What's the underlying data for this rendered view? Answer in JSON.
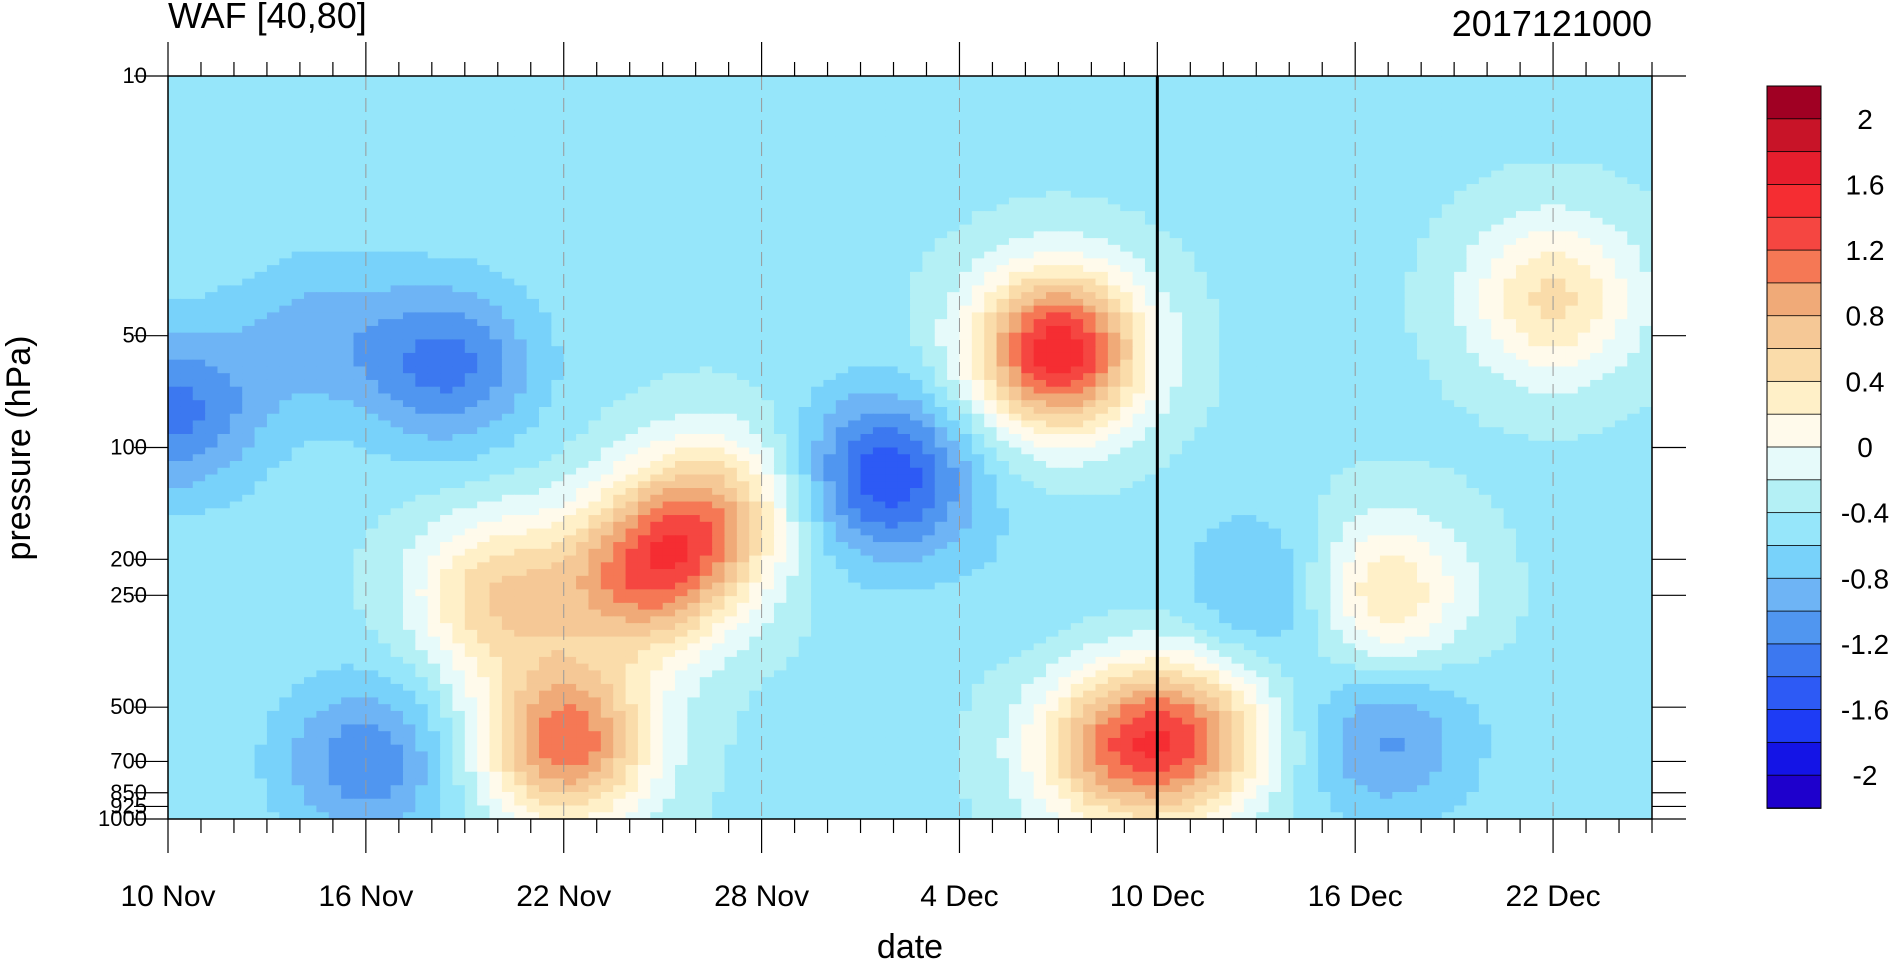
{
  "chart_data": {
    "type": "heatmap",
    "title": "WAF [40,80]",
    "timestamp": "2017121000",
    "xlabel": "date",
    "ylabel": "pressure (hPa)",
    "x_ticks": [
      {
        "day": 0,
        "label": "10 Nov"
      },
      {
        "day": 6,
        "label": "16 Nov"
      },
      {
        "day": 12,
        "label": "22 Nov"
      },
      {
        "day": 18,
        "label": "28 Nov"
      },
      {
        "day": 24,
        "label": "4 Dec"
      },
      {
        "day": 30,
        "label": "10 Dec"
      },
      {
        "day": 36,
        "label": "16 Dec"
      },
      {
        "day": 42,
        "label": "22 Dec"
      }
    ],
    "x_range_days": [
      0,
      45
    ],
    "current_day_marker": 30,
    "y_ticks": [
      10,
      50,
      100,
      200,
      250,
      500,
      700,
      850,
      925,
      1000
    ],
    "y_range_hpa": [
      10,
      1000
    ],
    "y_scale": "log",
    "colorbar": {
      "levels": [
        -2.2,
        -2,
        -1.8,
        -1.6,
        -1.4,
        -1.2,
        -1,
        -0.8,
        -0.6,
        -0.4,
        -0.2,
        0,
        0.2,
        0.4,
        0.6,
        0.8,
        1,
        1.2,
        1.4,
        1.6,
        1.8,
        2,
        2.2
      ],
      "colors": [
        "#1e00cc",
        "#1414e6",
        "#1e3cf5",
        "#2d5af5",
        "#3c78f0",
        "#5096f0",
        "#6eb4f5",
        "#78d2fa",
        "#96e6fa",
        "#b4f0f5",
        "#e6fafa",
        "#fffaeb",
        "#fff0c8",
        "#fadcaa",
        "#f5c896",
        "#f0aa78",
        "#f57855",
        "#f54641",
        "#f52d32",
        "#e61e2d",
        "#c81428",
        "#a00023"
      ],
      "labels": [
        "2",
        "1.6",
        "1.2",
        "0.8",
        "0.4",
        "0",
        "-0.4",
        "-0.8",
        "-1.2",
        "-1.6",
        "-2"
      ]
    },
    "features": [
      {
        "day": 8.5,
        "hpa": 60,
        "value": -1.0
      },
      {
        "day": 21.8,
        "hpa": 120,
        "value": -1.3
      },
      {
        "day": 27,
        "hpa": 55,
        "value": 1.8
      },
      {
        "day": 12.1,
        "hpa": 620,
        "value": 1.4
      },
      {
        "day": 14.5,
        "hpa": 220,
        "value": 1.2
      },
      {
        "day": 16.5,
        "hpa": 150,
        "value": 0.9
      },
      {
        "day": 10.0,
        "hpa": 250,
        "value": 0.8
      },
      {
        "day": 31.0,
        "hpa": 600,
        "value": 1.1
      },
      {
        "day": 28.5,
        "hpa": 650,
        "value": 0.9
      },
      {
        "day": 33.5,
        "hpa": 250,
        "value": -0.7
      },
      {
        "day": 36.8,
        "hpa": 250,
        "value": 0.7
      },
      {
        "day": 42,
        "hpa": 40,
        "value": 0.7
      },
      {
        "day": 4.5,
        "hpa": 50,
        "value": -0.6
      },
      {
        "day": 37,
        "hpa": 600,
        "value": -0.8
      },
      {
        "day": 6,
        "hpa": 700,
        "value": -0.9
      },
      {
        "day": 0.2,
        "hpa": 80,
        "value": -1.0
      },
      {
        "day": 26.5,
        "hpa": 240,
        "value": -0.3
      }
    ]
  }
}
